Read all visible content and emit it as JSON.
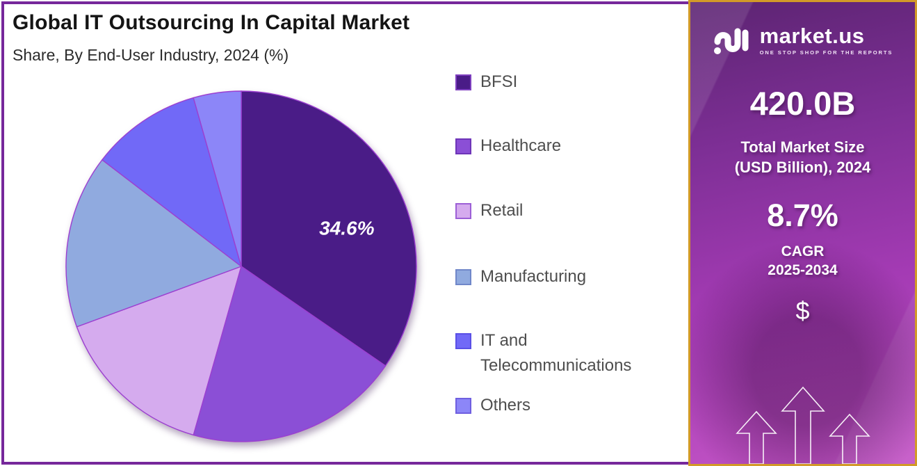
{
  "header": {
    "title": "Global IT Outsourcing In Capital Market",
    "subtitle": "Share, By End-User Industry, 2024 (%)"
  },
  "chart_data": {
    "type": "pie",
    "title": "Global IT Outsourcing In Capital Market",
    "subtitle": "Share, By End-User Industry, 2024 (%)",
    "unit": "percent",
    "start_angle_deg": 0,
    "direction": "clockwise",
    "legend_position": "right",
    "slice_stroke": "#9C3FD0",
    "slices": [
      {
        "label": "BFSI",
        "value": 34.6,
        "data_label": "34.6%",
        "color": "#4A1C87",
        "swatch_border": "#7E3FBF"
      },
      {
        "label": "Healthcare",
        "value": 19.8,
        "data_label": "",
        "color": "#8B4FD6",
        "swatch_border": "#6E35B8"
      },
      {
        "label": "Retail",
        "value": 15.0,
        "data_label": "",
        "color": "#D5ABEE",
        "swatch_border": "#9C5FD6"
      },
      {
        "label": "Manufacturing",
        "value": 16.0,
        "data_label": "",
        "color": "#90AADF",
        "swatch_border": "#7087C9"
      },
      {
        "label": "IT and Telecommunications",
        "value": 10.2,
        "data_label": "",
        "color": "#7169F7",
        "swatch_border": "#5A50E6"
      },
      {
        "label": "Others",
        "value": 4.4,
        "data_label": "",
        "color": "#8C86F8",
        "swatch_border": "#6F5FE0"
      }
    ]
  },
  "sidebar": {
    "brand_name": "market.us",
    "brand_tagline": "ONE STOP SHOP FOR THE REPORTS",
    "market_size_value": "420.0B",
    "market_size_caption_line1": "Total Market Size",
    "market_size_caption_line2": "(USD Billion), 2024",
    "cagr_value": "8.7%",
    "cagr_caption_line1": "CAGR",
    "cagr_caption_line2": "2025-2034",
    "dollar_symbol": "$"
  },
  "colors": {
    "frame_border": "#76289B",
    "title_text": "#141414",
    "legend_text": "#4E4E4E",
    "pie_label_text": "#FFFFFF",
    "sidebar_gold_border": "#D29A28",
    "sidebar_gradient_top": "#5C2472",
    "sidebar_gradient_mid": "#A43BB4",
    "sidebar_gradient_bottom": "#C455C6",
    "sidebar_text": "#FFFFFF"
  }
}
